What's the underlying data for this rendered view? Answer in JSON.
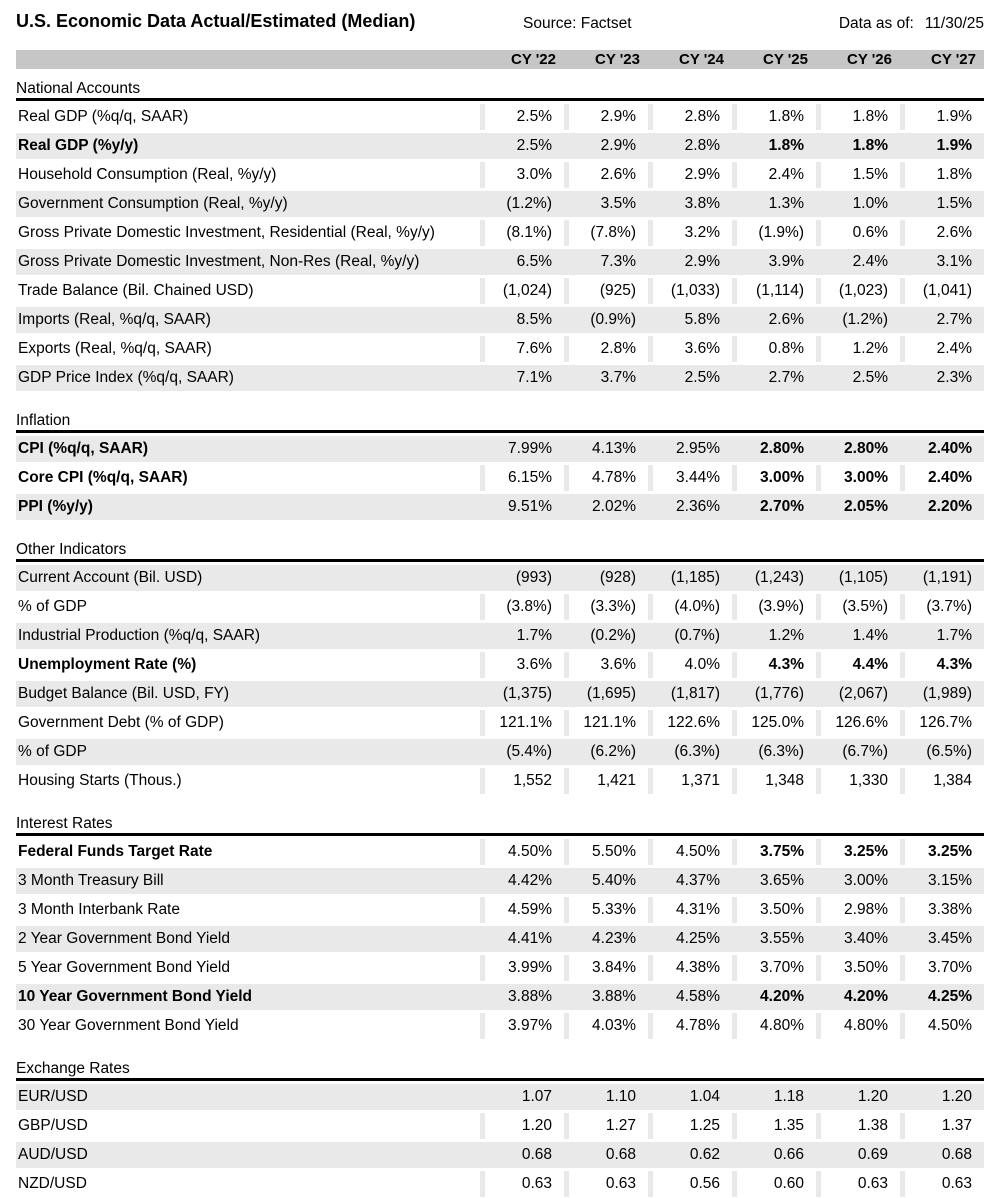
{
  "header": {
    "title": "U.S. Economic Data Actual/Estimated (Median)",
    "source": "Source: Factset",
    "data_as_of_label": "Data as of:",
    "data_as_of_value": "11/30/25"
  },
  "colors": {
    "header_band": "#c6c6c6",
    "row_stripe": "#e9e9e9",
    "section_rule": "#000000"
  },
  "columns": [
    "CY '22",
    "CY '23",
    "CY '24",
    "CY '25",
    "CY '26",
    "CY '27"
  ],
  "sections": [
    {
      "title": "National Accounts",
      "rows": [
        {
          "label": "Real GDP (%q/q, SAAR)",
          "values": [
            "2.5%",
            "2.9%",
            "2.8%",
            "1.8%",
            "1.8%",
            "1.9%"
          ],
          "bold": false,
          "shaded": false
        },
        {
          "label": "Real GDP (%y/y)",
          "values": [
            "2.5%",
            "2.9%",
            "2.8%",
            "1.8%",
            "1.8%",
            "1.9%"
          ],
          "bold": true,
          "shaded": true
        },
        {
          "label": "Household Consumption (Real, %y/y)",
          "values": [
            "3.0%",
            "2.6%",
            "2.9%",
            "2.4%",
            "1.5%",
            "1.8%"
          ],
          "bold": false,
          "shaded": false
        },
        {
          "label": "Government Consumption (Real, %y/y)",
          "values": [
            "(1.2%)",
            "3.5%",
            "3.8%",
            "1.3%",
            "1.0%",
            "1.5%"
          ],
          "bold": false,
          "shaded": true
        },
        {
          "label": "Gross Private Domestic Investment, Residential (Real, %y/y)",
          "values": [
            "(8.1%)",
            "(7.8%)",
            "3.2%",
            "(1.9%)",
            "0.6%",
            "2.6%"
          ],
          "bold": false,
          "shaded": false
        },
        {
          "label": "Gross Private Domestic Investment, Non-Res (Real, %y/y)",
          "values": [
            "6.5%",
            "7.3%",
            "2.9%",
            "3.9%",
            "2.4%",
            "3.1%"
          ],
          "bold": false,
          "shaded": true
        },
        {
          "label": "Trade Balance (Bil. Chained USD)",
          "values": [
            "(1,024)",
            "(925)",
            "(1,033)",
            "(1,114)",
            "(1,023)",
            "(1,041)"
          ],
          "bold": false,
          "shaded": false
        },
        {
          "label": "Imports (Real, %q/q, SAAR)",
          "values": [
            "8.5%",
            "(0.9%)",
            "5.8%",
            "2.6%",
            "(1.2%)",
            "2.7%"
          ],
          "bold": false,
          "shaded": true
        },
        {
          "label": "Exports (Real, %q/q, SAAR)",
          "values": [
            "7.6%",
            "2.8%",
            "3.6%",
            "0.8%",
            "1.2%",
            "2.4%"
          ],
          "bold": false,
          "shaded": false
        },
        {
          "label": "GDP Price Index (%q/q, SAAR)",
          "values": [
            "7.1%",
            "3.7%",
            "2.5%",
            "2.7%",
            "2.5%",
            "2.3%"
          ],
          "bold": false,
          "shaded": true
        }
      ]
    },
    {
      "title": "Inflation",
      "rows": [
        {
          "label": "CPI (%q/q, SAAR)",
          "values": [
            "7.99%",
            "4.13%",
            "2.95%",
            "2.80%",
            "2.80%",
            "2.40%"
          ],
          "bold": true,
          "shaded": true
        },
        {
          "label": "Core CPI (%q/q, SAAR)",
          "values": [
            "6.15%",
            "4.78%",
            "3.44%",
            "3.00%",
            "3.00%",
            "2.40%"
          ],
          "bold": true,
          "shaded": false
        },
        {
          "label": "PPI (%y/y)",
          "values": [
            "9.51%",
            "2.02%",
            "2.36%",
            "2.70%",
            "2.05%",
            "2.20%"
          ],
          "bold": true,
          "shaded": true
        }
      ]
    },
    {
      "title": "Other Indicators",
      "rows": [
        {
          "label": "Current Account (Bil. USD)",
          "values": [
            "(993)",
            "(928)",
            "(1,185)",
            "(1,243)",
            "(1,105)",
            "(1,191)"
          ],
          "bold": false,
          "shaded": true
        },
        {
          "label": "% of GDP",
          "values": [
            "(3.8%)",
            "(3.3%)",
            "(4.0%)",
            "(3.9%)",
            "(3.5%)",
            "(3.7%)"
          ],
          "bold": false,
          "shaded": false
        },
        {
          "label": "Industrial Production (%q/q, SAAR)",
          "values": [
            "1.7%",
            "(0.2%)",
            "(0.7%)",
            "1.2%",
            "1.4%",
            "1.7%"
          ],
          "bold": false,
          "shaded": true
        },
        {
          "label": "Unemployment Rate (%)",
          "values": [
            "3.6%",
            "3.6%",
            "4.0%",
            "4.3%",
            "4.4%",
            "4.3%"
          ],
          "bold": true,
          "shaded": false
        },
        {
          "label": "Budget Balance (Bil. USD, FY)",
          "values": [
            "(1,375)",
            "(1,695)",
            "(1,817)",
            "(1,776)",
            "(2,067)",
            "(1,989)"
          ],
          "bold": false,
          "shaded": true
        },
        {
          "label": "Government Debt (% of GDP)",
          "values": [
            "121.1%",
            "121.1%",
            "122.6%",
            "125.0%",
            "126.6%",
            "126.7%"
          ],
          "bold": false,
          "shaded": false
        },
        {
          "label": "% of GDP",
          "values": [
            "(5.4%)",
            "(6.2%)",
            "(6.3%)",
            "(6.3%)",
            "(6.7%)",
            "(6.5%)"
          ],
          "bold": false,
          "shaded": true
        },
        {
          "label": "Housing Starts (Thous.)",
          "values": [
            "1,552",
            "1,421",
            "1,371",
            "1,348",
            "1,330",
            "1,384"
          ],
          "bold": false,
          "shaded": false
        }
      ]
    },
    {
      "title": "Interest Rates",
      "rows": [
        {
          "label": "Federal Funds Target Rate",
          "values": [
            "4.50%",
            "5.50%",
            "4.50%",
            "3.75%",
            "3.25%",
            "3.25%"
          ],
          "bold": true,
          "shaded": false
        },
        {
          "label": "3 Month Treasury Bill",
          "values": [
            "4.42%",
            "5.40%",
            "4.37%",
            "3.65%",
            "3.00%",
            "3.15%"
          ],
          "bold": false,
          "shaded": true
        },
        {
          "label": "3 Month Interbank Rate",
          "values": [
            "4.59%",
            "5.33%",
            "4.31%",
            "3.50%",
            "2.98%",
            "3.38%"
          ],
          "bold": false,
          "shaded": false
        },
        {
          "label": "2 Year Government Bond Yield",
          "values": [
            "4.41%",
            "4.23%",
            "4.25%",
            "3.55%",
            "3.40%",
            "3.45%"
          ],
          "bold": false,
          "shaded": true
        },
        {
          "label": "5 Year Government Bond Yield",
          "values": [
            "3.99%",
            "3.84%",
            "4.38%",
            "3.70%",
            "3.50%",
            "3.70%"
          ],
          "bold": false,
          "shaded": false
        },
        {
          "label": "10 Year Government Bond Yield",
          "values": [
            "3.88%",
            "3.88%",
            "4.58%",
            "4.20%",
            "4.20%",
            "4.25%"
          ],
          "bold": true,
          "shaded": true
        },
        {
          "label": "30 Year Government Bond Yield",
          "values": [
            "3.97%",
            "4.03%",
            "4.78%",
            "4.80%",
            "4.80%",
            "4.50%"
          ],
          "bold": false,
          "shaded": false
        }
      ]
    },
    {
      "title": "Exchange Rates",
      "rows": [
        {
          "label": "EUR/USD",
          "values": [
            "1.07",
            "1.10",
            "1.04",
            "1.18",
            "1.20",
            "1.20"
          ],
          "bold": false,
          "shaded": true
        },
        {
          "label": "GBP/USD",
          "values": [
            "1.20",
            "1.27",
            "1.25",
            "1.35",
            "1.38",
            "1.37"
          ],
          "bold": false,
          "shaded": false
        },
        {
          "label": "AUD/USD",
          "values": [
            "0.68",
            "0.68",
            "0.62",
            "0.66",
            "0.69",
            "0.68"
          ],
          "bold": false,
          "shaded": true
        },
        {
          "label": "NZD/USD",
          "values": [
            "0.63",
            "0.63",
            "0.56",
            "0.60",
            "0.63",
            "0.63"
          ],
          "bold": false,
          "shaded": false
        }
      ]
    }
  ]
}
